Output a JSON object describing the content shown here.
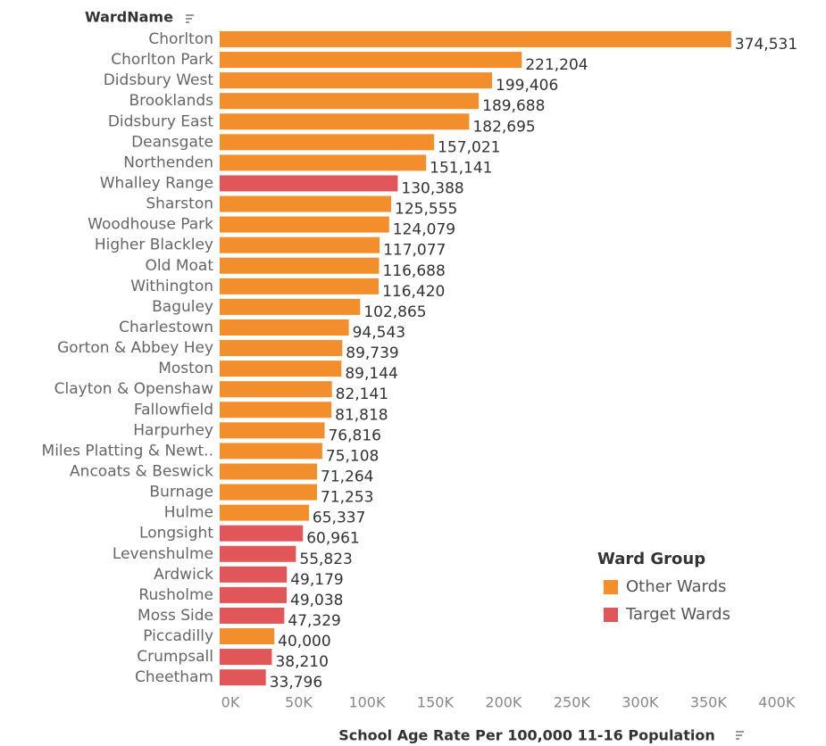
{
  "chart_data": {
    "type": "bar",
    "orientation": "horizontal",
    "category_header": "WardName",
    "x_label": "School Age Rate Per 100,000 11-16 Population",
    "legend_title": "Ward Group",
    "legend_position": "bottom-right",
    "categories": [
      "Chorlton",
      "Chorlton Park",
      "Didsbury West",
      "Brooklands",
      "Didsbury East",
      "Deansgate",
      "Northenden",
      "Whalley Range",
      "Sharston",
      "Woodhouse Park",
      "Higher Blackley",
      "Old Moat",
      "Withington",
      "Baguley",
      "Charlestown",
      "Gorton & Abbey Hey",
      "Moston",
      "Clayton & Openshaw",
      "Fallowfield",
      "Harpurhey",
      "Miles Platting & Newt..",
      "Ancoats & Beswick",
      "Burnage",
      "Hulme",
      "Longsight",
      "Levenshulme",
      "Ardwick",
      "Rusholme",
      "Moss Side",
      "Piccadilly",
      "Crumpsall",
      "Cheetham"
    ],
    "series": [
      {
        "name": "Other Wards",
        "color": "#f28e2b",
        "values": [
          374531,
          221204,
          199406,
          189688,
          182695,
          157021,
          151141,
          null,
          125555,
          124079,
          117077,
          116688,
          116420,
          102865,
          94543,
          89739,
          89144,
          82141,
          81818,
          76816,
          75108,
          71264,
          71253,
          65337,
          null,
          null,
          null,
          null,
          null,
          40000,
          null,
          null
        ],
        "value_labels": [
          "374,531",
          "221,204",
          "199,406",
          "189,688",
          "182,695",
          "157,021",
          "151,141",
          null,
          "125,555",
          "124,079",
          "117,077",
          "116,688",
          "116,420",
          "102,865",
          "94,543",
          "89,739",
          "89,144",
          "82,141",
          "81,818",
          "76,816",
          "75,108",
          "71,264",
          "71,253",
          "65,337",
          null,
          null,
          null,
          null,
          null,
          "40,000",
          null,
          null
        ]
      },
      {
        "name": "Target Wards",
        "color": "#e15759",
        "values": [
          null,
          null,
          null,
          null,
          null,
          null,
          null,
          130388,
          null,
          null,
          null,
          null,
          null,
          null,
          null,
          null,
          null,
          null,
          null,
          null,
          null,
          null,
          null,
          null,
          60961,
          55823,
          49179,
          49038,
          47329,
          null,
          38210,
          33796
        ],
        "value_labels": [
          null,
          null,
          null,
          null,
          null,
          null,
          null,
          "130,388",
          null,
          null,
          null,
          null,
          null,
          null,
          null,
          null,
          null,
          null,
          null,
          null,
          null,
          null,
          null,
          null,
          "60,961",
          "55,823",
          "49,179",
          "49,038",
          "47,329",
          null,
          "38,210",
          "33,796"
        ]
      }
    ],
    "xlim": [
      0,
      440000
    ],
    "xticks": [
      {
        "value": 0,
        "label": "0K"
      },
      {
        "value": 50000,
        "label": "50K"
      },
      {
        "value": 100000,
        "label": "100K"
      },
      {
        "value": 150000,
        "label": "150K"
      },
      {
        "value": 200000,
        "label": "200K"
      },
      {
        "value": 250000,
        "label": "250K"
      },
      {
        "value": 300000,
        "label": "300K"
      },
      {
        "value": 350000,
        "label": "350K"
      },
      {
        "value": 400000,
        "label": "400K"
      }
    ]
  }
}
